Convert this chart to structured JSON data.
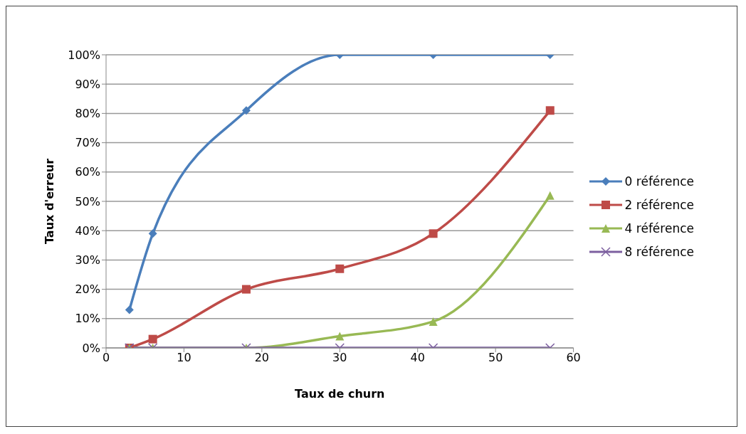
{
  "chart_data": {
    "type": "line",
    "xlabel": "Taux de churn",
    "ylabel": "Taux d'erreur",
    "x": [
      3,
      6,
      18,
      30,
      42,
      57
    ],
    "series": [
      {
        "name": "0 référence",
        "color": "#4a7ebb",
        "marker": "diamond",
        "values": [
          13,
          39,
          81,
          100,
          100,
          100
        ]
      },
      {
        "name": "2 référence",
        "color": "#be4b48",
        "marker": "square",
        "values": [
          0,
          3,
          20,
          27,
          39,
          81
        ]
      },
      {
        "name": "4 référence",
        "color": "#98b954",
        "marker": "triangle",
        "values": [
          0,
          0,
          0,
          4,
          9,
          52
        ]
      },
      {
        "name": "8 référence",
        "color": "#7d60a0",
        "marker": "cross",
        "values": [
          0,
          0,
          0,
          0,
          0,
          0
        ]
      }
    ],
    "xlim": [
      0,
      60
    ],
    "xticks": [
      0,
      10,
      20,
      30,
      40,
      50,
      60
    ],
    "ylim": [
      0,
      100
    ],
    "yticks": [
      {
        "value": 0,
        "label": "0%"
      },
      {
        "value": 10,
        "label": "10%"
      },
      {
        "value": 20,
        "label": "20%"
      },
      {
        "value": 30,
        "label": "30%"
      },
      {
        "value": 40,
        "label": "40%"
      },
      {
        "value": 50,
        "label": "50%"
      },
      {
        "value": 60,
        "label": "60%"
      },
      {
        "value": 70,
        "label": "70%"
      },
      {
        "value": 80,
        "label": "80%"
      },
      {
        "value": 90,
        "label": "90%"
      },
      {
        "value": 100,
        "label": "100%"
      }
    ],
    "grid": "y",
    "legend": "right",
    "line_style": "solid"
  }
}
